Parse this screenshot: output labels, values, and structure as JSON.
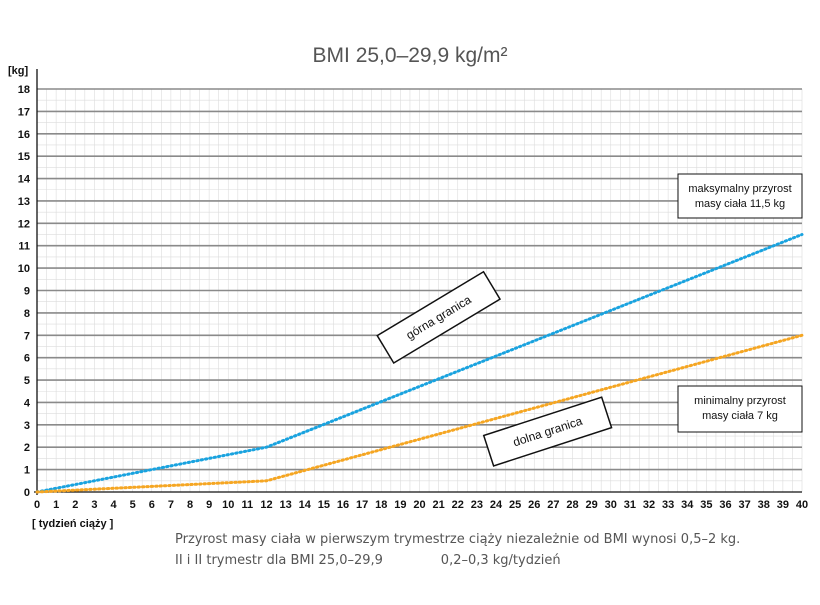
{
  "chart_data": {
    "type": "line",
    "title": "BMI 25,0–29,9 kg/m²",
    "ylabel": "[kg]",
    "xlabel": "[ tydzień ciąży ]",
    "xlim": [
      0,
      40
    ],
    "ylim": [
      0,
      18
    ],
    "x_ticks": [
      "0",
      "1",
      "2",
      "3",
      "4",
      "5",
      "6",
      "7",
      "8",
      "9",
      "10",
      "11",
      "12",
      "13",
      "14",
      "15",
      "16",
      "17",
      "18",
      "19",
      "20",
      "21",
      "22",
      "23",
      "24",
      "25",
      "26",
      "27",
      "28",
      "29",
      "30",
      "31",
      "32",
      "33",
      "34",
      "35",
      "36",
      "37",
      "38",
      "39",
      "40"
    ],
    "y_ticks": [
      "0",
      "1",
      "2",
      "3",
      "4",
      "5",
      "6",
      "7",
      "8",
      "9",
      "10",
      "11",
      "12",
      "13",
      "14",
      "15",
      "16",
      "17",
      "18"
    ],
    "grid": true,
    "series": [
      {
        "name": "górna granica",
        "color": "#1aa3df",
        "style": "dotted",
        "x": [
          0,
          12,
          40
        ],
        "y": [
          0,
          2,
          11.5
        ]
      },
      {
        "name": "dolna granica",
        "color": "#f5a623",
        "style": "dotted",
        "x": [
          0,
          12,
          40
        ],
        "y": [
          0,
          0.5,
          7
        ]
      }
    ],
    "annotations": {
      "max": [
        "maksymalny przyrost",
        "masy ciała 11,5 kg"
      ],
      "min": [
        "minimalny przyrost",
        "masy ciała 7 kg"
      ]
    }
  },
  "footer": {
    "line1": "Przyrost masy ciała w pierwszym trymestrze ciąży niezależnie od BMI wynosi 0,5–2 kg.",
    "line2": "II i II trymestr dla BMI 25,0–29,9              0,2–0,3 kg/tydzień"
  }
}
